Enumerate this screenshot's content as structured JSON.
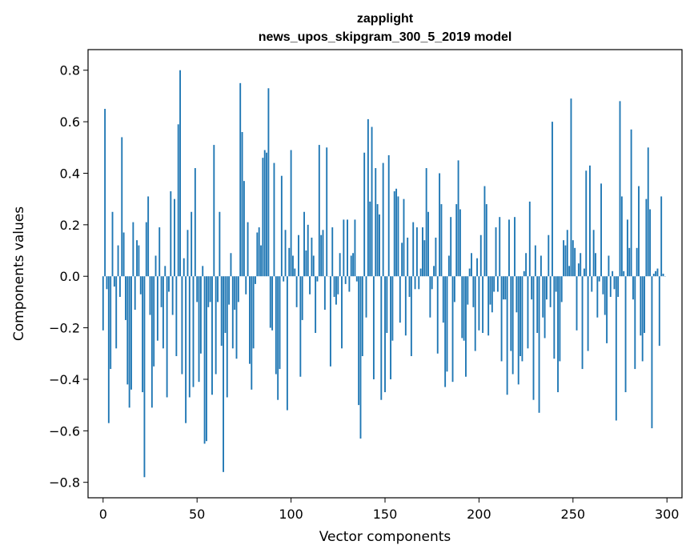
{
  "chart_data": {
    "type": "bar",
    "title": "zapplight",
    "subtitle": "news_upos_skipgram_300_5_2019 model",
    "xlabel": "Vector components",
    "ylabel": "Components values",
    "xlim": [
      -8,
      308
    ],
    "ylim": [
      -0.86,
      0.88
    ],
    "xticks": [
      0,
      50,
      100,
      150,
      200,
      250,
      300
    ],
    "xtick_labels": [
      "0",
      "50",
      "100",
      "150",
      "200",
      "250",
      "300"
    ],
    "yticks": [
      -0.8,
      -0.6,
      -0.4,
      -0.2,
      0.0,
      0.2,
      0.4,
      0.6,
      0.8
    ],
    "ytick_labels": [
      "−0.8",
      "−0.6",
      "−0.4",
      "−0.2",
      "0.0",
      "0.2",
      "0.4",
      "0.6",
      "0.8"
    ],
    "grid": false,
    "bar_color": "#1f77b4",
    "values": [
      -0.21,
      0.65,
      -0.05,
      -0.57,
      -0.36,
      0.25,
      -0.04,
      -0.28,
      0.12,
      -0.08,
      0.54,
      0.17,
      -0.17,
      -0.42,
      -0.51,
      -0.44,
      0.21,
      -0.13,
      0.14,
      0.12,
      -0.07,
      -0.45,
      -0.78,
      0.21,
      0.31,
      -0.15,
      -0.51,
      -0.35,
      0.08,
      -0.25,
      0.19,
      -0.12,
      -0.28,
      0.04,
      -0.47,
      -0.06,
      0.33,
      -0.15,
      0.3,
      -0.31,
      0.59,
      0.8,
      -0.38,
      0.07,
      -0.57,
      0.18,
      -0.47,
      0.25,
      -0.43,
      0.42,
      -0.1,
      -0.41,
      -0.3,
      0.04,
      -0.65,
      -0.64,
      -0.12,
      -0.1,
      -0.46,
      0.51,
      -0.38,
      -0.1,
      0.25,
      -0.27,
      -0.76,
      -0.22,
      -0.47,
      -0.11,
      0.09,
      -0.28,
      -0.13,
      -0.32,
      -0.1,
      0.75,
      0.56,
      0.37,
      -0.07,
      0.21,
      -0.34,
      -0.44,
      -0.28,
      -0.03,
      0.17,
      0.19,
      0.12,
      0.46,
      0.49,
      0.48,
      0.73,
      -0.2,
      -0.21,
      0.44,
      -0.38,
      -0.48,
      -0.36,
      0.39,
      -0.02,
      0.18,
      -0.52,
      0.11,
      0.49,
      0.08,
      0.03,
      -0.12,
      0.16,
      -0.39,
      -0.17,
      0.25,
      0.1,
      0.2,
      -0.07,
      0.15,
      0.08,
      -0.22,
      -0.02,
      0.51,
      0.16,
      0.18,
      -0.13,
      0.5,
      0.0,
      -0.35,
      0.19,
      -0.08,
      -0.11,
      -0.07,
      0.09,
      -0.28,
      0.22,
      -0.03,
      0.22,
      -0.06,
      0.08,
      0.09,
      0.22,
      -0.02,
      -0.5,
      -0.63,
      -0.31,
      0.48,
      -0.16,
      0.61,
      0.29,
      0.58,
      -0.4,
      0.42,
      0.28,
      0.24,
      -0.48,
      0.44,
      -0.45,
      -0.22,
      0.47,
      -0.4,
      -0.25,
      0.33,
      0.34,
      0.31,
      -0.18,
      0.13,
      0.3,
      -0.23,
      0.15,
      -0.08,
      -0.31,
      0.21,
      -0.05,
      0.19,
      -0.05,
      0.03,
      0.19,
      0.14,
      0.42,
      0.25,
      -0.16,
      -0.05,
      0.04,
      0.15,
      -0.3,
      0.4,
      0.28,
      -0.18,
      -0.43,
      -0.37,
      0.08,
      0.23,
      -0.41,
      -0.1,
      0.28,
      0.45,
      0.26,
      -0.24,
      -0.25,
      -0.39,
      -0.11,
      0.03,
      0.09,
      -0.12,
      -0.29,
      0.07,
      -0.21,
      0.16,
      -0.22,
      0.35,
      0.28,
      -0.23,
      -0.11,
      -0.14,
      -0.06,
      0.19,
      -0.06,
      0.23,
      -0.33,
      -0.09,
      -0.09,
      -0.46,
      0.22,
      -0.29,
      -0.38,
      0.23,
      -0.14,
      -0.42,
      -0.31,
      -0.33,
      0.02,
      0.09,
      -0.28,
      0.29,
      -0.09,
      -0.48,
      0.12,
      -0.22,
      -0.53,
      0.08,
      -0.16,
      -0.24,
      -0.09,
      0.16,
      -0.12,
      0.6,
      -0.32,
      -0.06,
      -0.45,
      -0.33,
      -0.1,
      0.14,
      0.12,
      0.18,
      0.04,
      0.69,
      0.14,
      0.11,
      -0.21,
      0.05,
      0.09,
      -0.36,
      0.03,
      0.41,
      -0.29,
      0.43,
      -0.06,
      0.18,
      0.09,
      -0.16,
      -0.02,
      0.36,
      -0.07,
      -0.15,
      -0.26,
      0.08,
      -0.08,
      0.02,
      -0.05,
      -0.56,
      -0.08,
      0.68,
      0.31,
      0.02,
      -0.45,
      0.22,
      0.11,
      0.57,
      -0.09,
      -0.36,
      0.11,
      0.35,
      -0.23,
      -0.33,
      -0.22,
      0.3,
      0.5,
      0.26,
      -0.59,
      0.01,
      0.02,
      0.03,
      -0.27,
      0.31,
      0.01,
      0.0
    ]
  }
}
